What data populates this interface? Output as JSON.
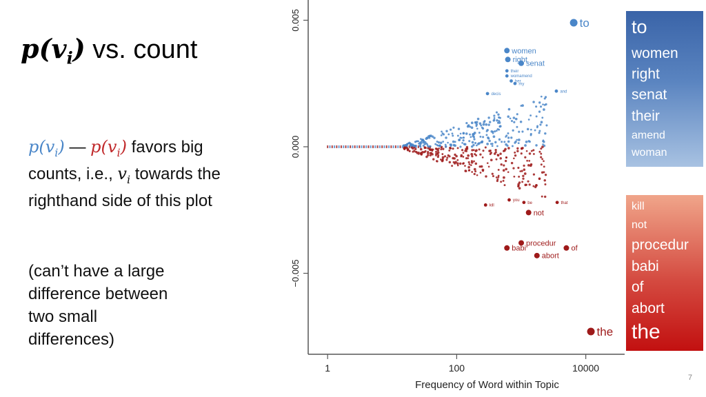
{
  "slide": {
    "title_math": "p(v",
    "title_sub": "i",
    "title_close": ")",
    "title_rest": " vs. count",
    "para1": {
      "a_main": "p(v",
      "a_sub": "i",
      "a_close": ")",
      "dash": " — ",
      "b_main": "p(v",
      "b_sub": "i",
      "b_close": ")",
      "line1_rest": " favors big",
      "line2_start": "counts, i.e., ",
      "vi_main": "v",
      "vi_sub": "i",
      "line2_rest": " towards the",
      "line3": "righthand side of this plot"
    },
    "para2": {
      "lines": [
        "(can’t have a large",
        "difference between",
        "two small",
        "differences)"
      ]
    },
    "page_number": "7"
  },
  "legend": {
    "blue_words": [
      "to",
      "women",
      "right",
      "senat",
      "their",
      "amend",
      "woman"
    ],
    "red_words": [
      "kill",
      "not",
      "procedur",
      "babi",
      "of",
      "abort",
      "the"
    ]
  },
  "chart_data": {
    "type": "scatter",
    "xlabel": "Frequency of Word within Topic",
    "ylabel": "",
    "x_scale": "log",
    "xlim": [
      0.5,
      40000
    ],
    "ylim": [
      -0.0082,
      0.0058
    ],
    "x_ticks": [
      1,
      100,
      10000
    ],
    "x_tick_labels": [
      "1",
      "100",
      "10000"
    ],
    "y_ticks": [
      -0.005,
      0.0,
      0.005
    ],
    "y_tick_labels": [
      "−0.005",
      "0.000",
      "0.005"
    ],
    "colors": {
      "blue": "#4a86c8",
      "red": "#9e1a1a"
    },
    "labeled_points": [
      {
        "label": "to",
        "x": 6500,
        "y": 0.0049,
        "color": "blue",
        "size": "large"
      },
      {
        "label": "women",
        "x": 600,
        "y": 0.0038,
        "color": "blue",
        "size": "medium"
      },
      {
        "label": "right",
        "x": 620,
        "y": 0.00345,
        "color": "blue",
        "size": "medium"
      },
      {
        "label": "senat",
        "x": 1000,
        "y": 0.0033,
        "color": "blue",
        "size": "medium"
      },
      {
        "label": "their",
        "x": 600,
        "y": 0.003,
        "color": "blue",
        "size": "small"
      },
      {
        "label": "womamend",
        "x": 600,
        "y": 0.0028,
        "color": "blue",
        "size": "small"
      },
      {
        "label": "her",
        "x": 700,
        "y": 0.0026,
        "color": "blue",
        "size": "small"
      },
      {
        "label": "my",
        "x": 800,
        "y": 0.0025,
        "color": "blue",
        "size": "small"
      },
      {
        "label": "and",
        "x": 3500,
        "y": 0.0022,
        "color": "blue",
        "size": "small"
      },
      {
        "label": "decis",
        "x": 300,
        "y": 0.0021,
        "color": "blue",
        "size": "small"
      },
      {
        "label": "you",
        "x": 650,
        "y": -0.0021,
        "color": "red",
        "size": "small"
      },
      {
        "label": "be",
        "x": 1100,
        "y": -0.0022,
        "color": "red",
        "size": "small"
      },
      {
        "label": "that",
        "x": 3600,
        "y": -0.0022,
        "color": "red",
        "size": "small"
      },
      {
        "label": "kill",
        "x": 280,
        "y": -0.0023,
        "color": "red",
        "size": "small"
      },
      {
        "label": "not",
        "x": 1300,
        "y": -0.0026,
        "color": "red",
        "size": "medium"
      },
      {
        "label": "procedur",
        "x": 1000,
        "y": -0.0038,
        "color": "red",
        "size": "medium"
      },
      {
        "label": "babi",
        "x": 600,
        "y": -0.004,
        "color": "red",
        "size": "medium"
      },
      {
        "label": "of",
        "x": 5000,
        "y": -0.004,
        "color": "red",
        "size": "medium"
      },
      {
        "label": "abort",
        "x": 1750,
        "y": -0.0043,
        "color": "red",
        "size": "medium"
      },
      {
        "label": "the",
        "x": 12000,
        "y": -0.0073,
        "color": "red",
        "size": "large"
      }
    ]
  }
}
